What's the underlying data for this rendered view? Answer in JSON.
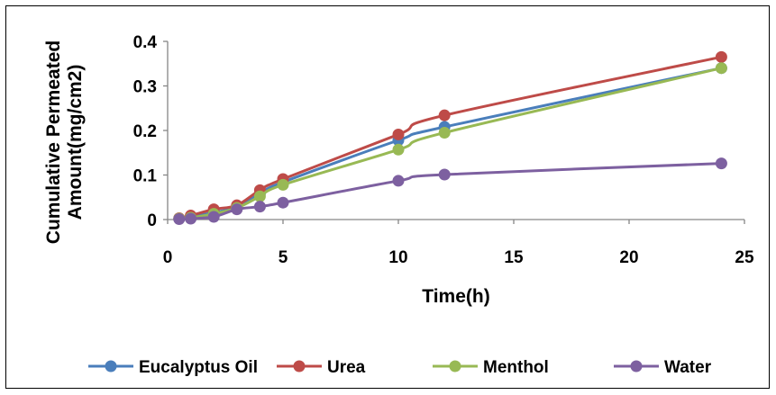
{
  "chart_data": {
    "type": "line",
    "xlabel": "Time(h)",
    "ylabel_lines": [
      "Cumulative Permeated",
      "Amount(mg/cm2)"
    ],
    "xlim": [
      0,
      25
    ],
    "ylim": [
      0,
      0.4
    ],
    "xticks": [
      "0",
      "5",
      "10",
      "15",
      "20",
      "25"
    ],
    "yticks": [
      "0",
      "0.1",
      "0.2",
      "0.3",
      "0.4"
    ],
    "x": [
      0.5,
      1,
      2,
      3,
      4,
      5,
      10,
      12,
      24
    ],
    "grid": false,
    "legend_position": "bottom",
    "series": [
      {
        "name": "Eucalyptus Oil",
        "color": "#4a7ebb",
        "values": [
          0.002,
          0.006,
          0.016,
          0.028,
          0.058,
          0.084,
          0.178,
          0.208,
          0.34
        ]
      },
      {
        "name": "Urea",
        "color": "#be4b48",
        "values": [
          0.003,
          0.009,
          0.023,
          0.032,
          0.066,
          0.091,
          0.191,
          0.234,
          0.365
        ]
      },
      {
        "name": "Menthol",
        "color": "#98b954",
        "values": [
          0.002,
          0.004,
          0.013,
          0.026,
          0.052,
          0.078,
          0.157,
          0.195,
          0.34
        ]
      },
      {
        "name": "Water",
        "color": "#7d60a0",
        "values": [
          0.001,
          0.002,
          0.006,
          0.023,
          0.029,
          0.038,
          0.087,
          0.101,
          0.126
        ]
      }
    ]
  }
}
